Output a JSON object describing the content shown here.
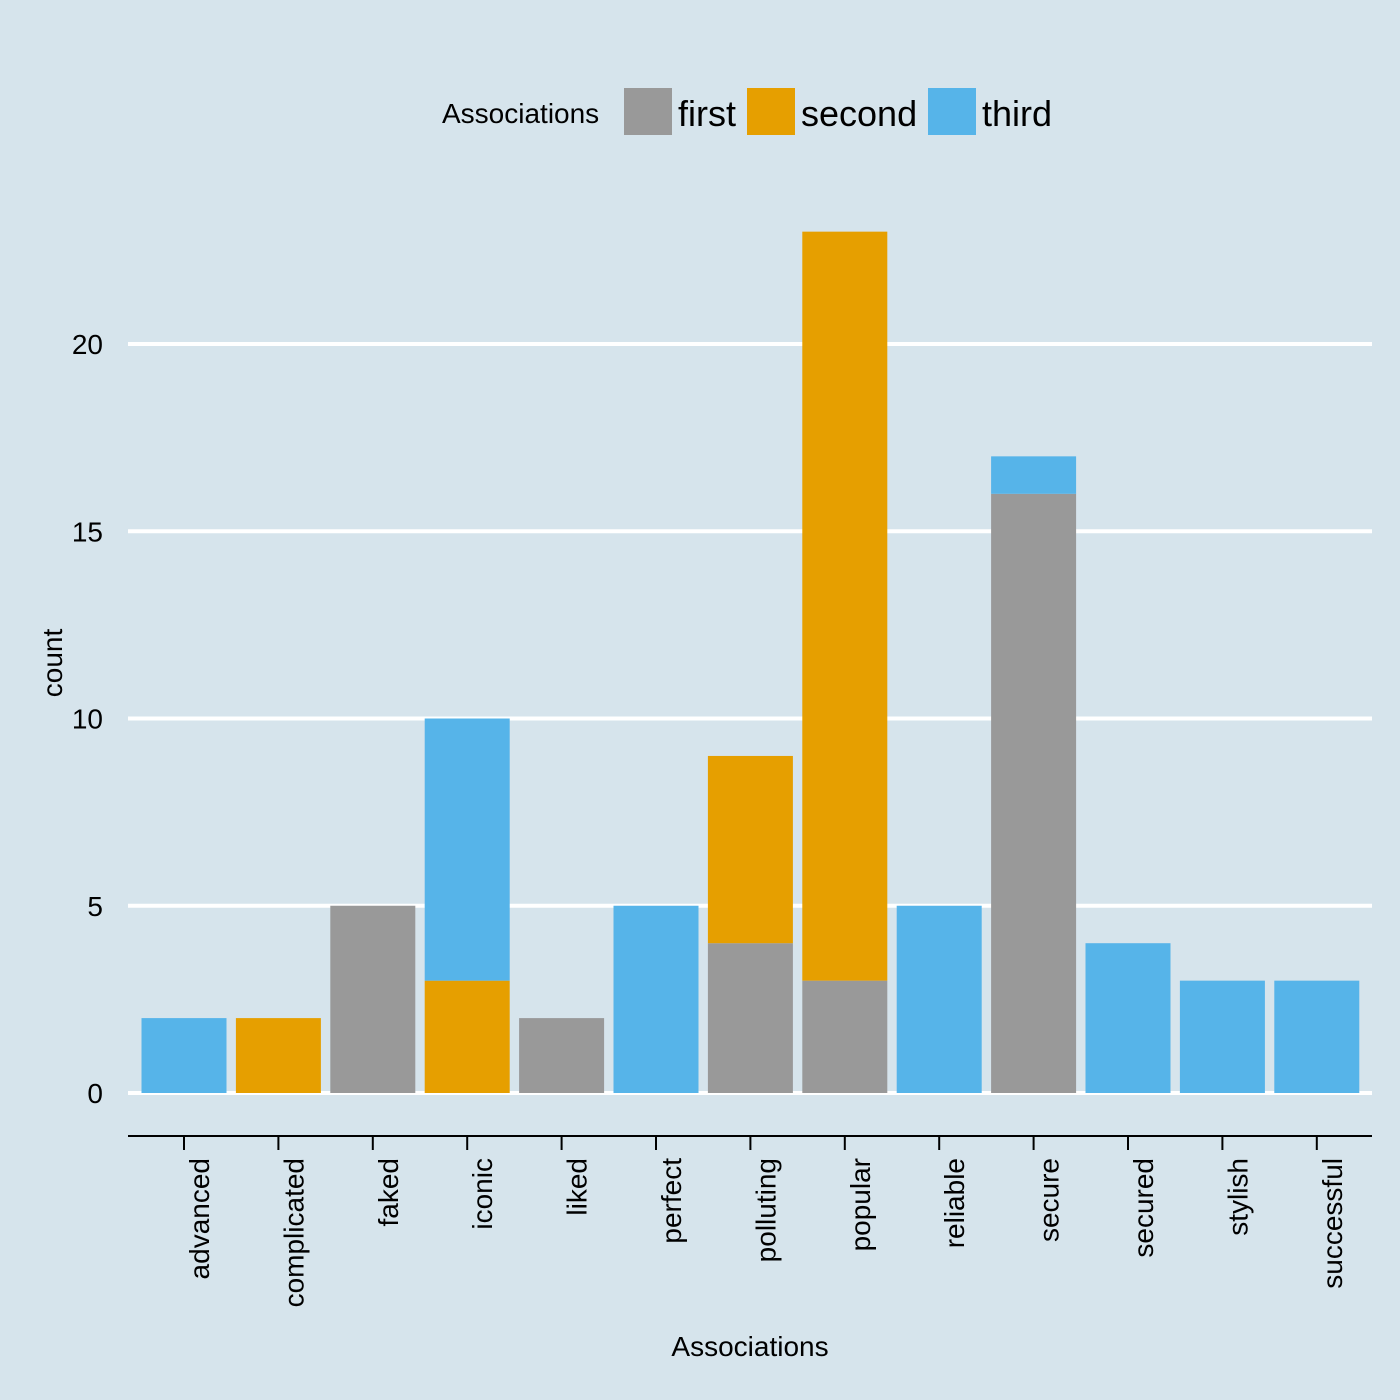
{
  "chart_data": {
    "type": "bar",
    "stacked": true,
    "xlabel": "Associations",
    "ylabel": "count",
    "ylim": [
      0,
      23
    ],
    "yticks": [
      0,
      5,
      10,
      15,
      20
    ],
    "grid": "horizontal",
    "legend": {
      "title": "Associations",
      "position": "top"
    },
    "categories": [
      "advanced",
      "complicated",
      "faked",
      "iconic",
      "liked",
      "perfect",
      "polluting",
      "popular",
      "reliable",
      "secure",
      "secured",
      "stylish",
      "successful"
    ],
    "series": [
      {
        "name": "first",
        "color": "#999999",
        "values": [
          0,
          0,
          5,
          0,
          2,
          0,
          4,
          3,
          0,
          16,
          0,
          0,
          0
        ]
      },
      {
        "name": "second",
        "color": "#E69F00",
        "values": [
          0,
          2,
          0,
          3,
          0,
          0,
          5,
          20,
          0,
          0,
          0,
          0,
          0
        ]
      },
      {
        "name": "third",
        "color": "#56B4E9",
        "values": [
          2,
          0,
          0,
          7,
          0,
          5,
          0,
          0,
          5,
          1,
          4,
          3,
          3
        ]
      }
    ]
  },
  "colors": {
    "background": "#d6e4ec",
    "grid": "#ffffff",
    "axis": "#000000"
  }
}
